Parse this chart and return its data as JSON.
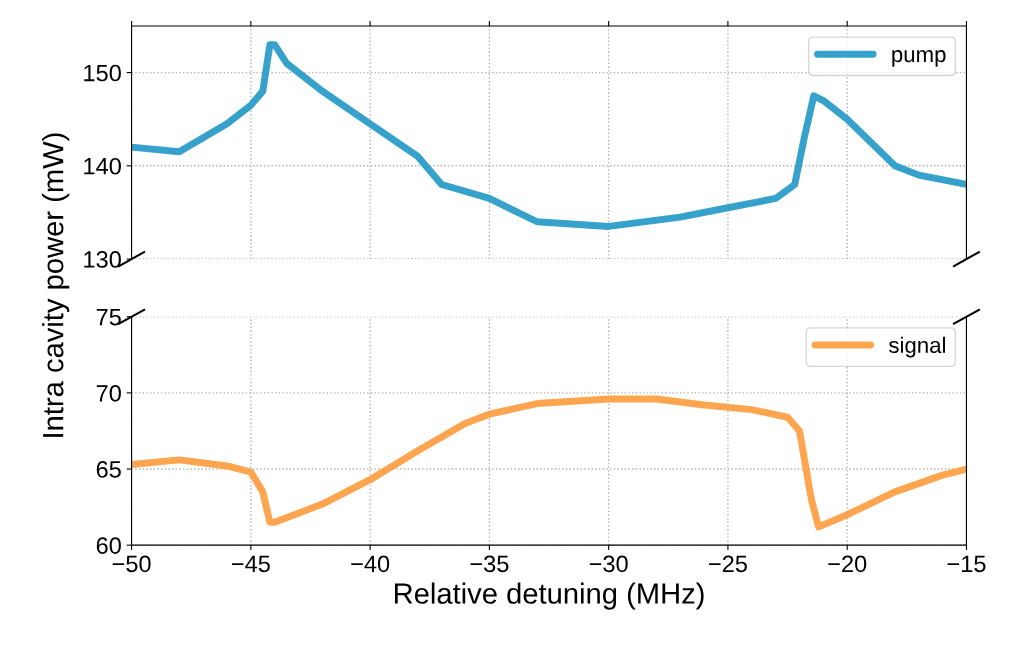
{
  "chart_data": [
    {
      "type": "line",
      "ylabel": "Intra cavity power (mW)",
      "xlim": [
        -50,
        -15
      ],
      "xticks": [
        -50,
        -45,
        -40,
        -35,
        -30,
        -25,
        -20,
        -15
      ],
      "ylim": [
        130,
        155
      ],
      "yticks": [
        130,
        140,
        150
      ],
      "grid": true,
      "legend": "top right",
      "tick_labels": "y",
      "series": [
        {
          "name": "pump",
          "color": "#36a2cb",
          "x": [
            -50,
            -48,
            -46,
            -45,
            -44.5,
            -44.2,
            -44,
            -43.5,
            -42,
            -40,
            -38,
            -37,
            -35,
            -33,
            -30,
            -27,
            -25,
            -23,
            -22.2,
            -21.8,
            -21.4,
            -21,
            -20,
            -19,
            -18,
            -17,
            -15
          ],
          "values": [
            142,
            141.5,
            144.5,
            146.5,
            148,
            153,
            153,
            151,
            148,
            144.5,
            141,
            138,
            136.5,
            134,
            133.5,
            134.5,
            135.5,
            136.5,
            138,
            143,
            147.5,
            147,
            145,
            142.5,
            140,
            139,
            138
          ]
        }
      ]
    },
    {
      "type": "line",
      "xlabel": "Relative detuning (MHz)",
      "xlim": [
        -50,
        -15
      ],
      "xticks": [
        -50,
        -45,
        -40,
        -35,
        -30,
        -25,
        -20,
        -15
      ],
      "ylim": [
        60,
        75
      ],
      "yticks": [
        60,
        65,
        70,
        75
      ],
      "grid": true,
      "legend": "top right",
      "series": [
        {
          "name": "signal",
          "color": "#ffa54f",
          "x": [
            -50,
            -48,
            -46,
            -45,
            -44.5,
            -44.2,
            -44,
            -42,
            -40,
            -38,
            -36,
            -35,
            -33,
            -30,
            -28,
            -26,
            -24,
            -22.5,
            -22,
            -21.5,
            -21.2,
            -20,
            -18,
            -16,
            -15
          ],
          "values": [
            65.3,
            65.6,
            65.2,
            64.8,
            63.5,
            61.5,
            61.5,
            62.7,
            64.3,
            66.2,
            68,
            68.6,
            69.3,
            69.6,
            69.6,
            69.2,
            68.9,
            68.4,
            67.5,
            63,
            61.2,
            62,
            63.5,
            64.6,
            65
          ]
        }
      ]
    }
  ]
}
